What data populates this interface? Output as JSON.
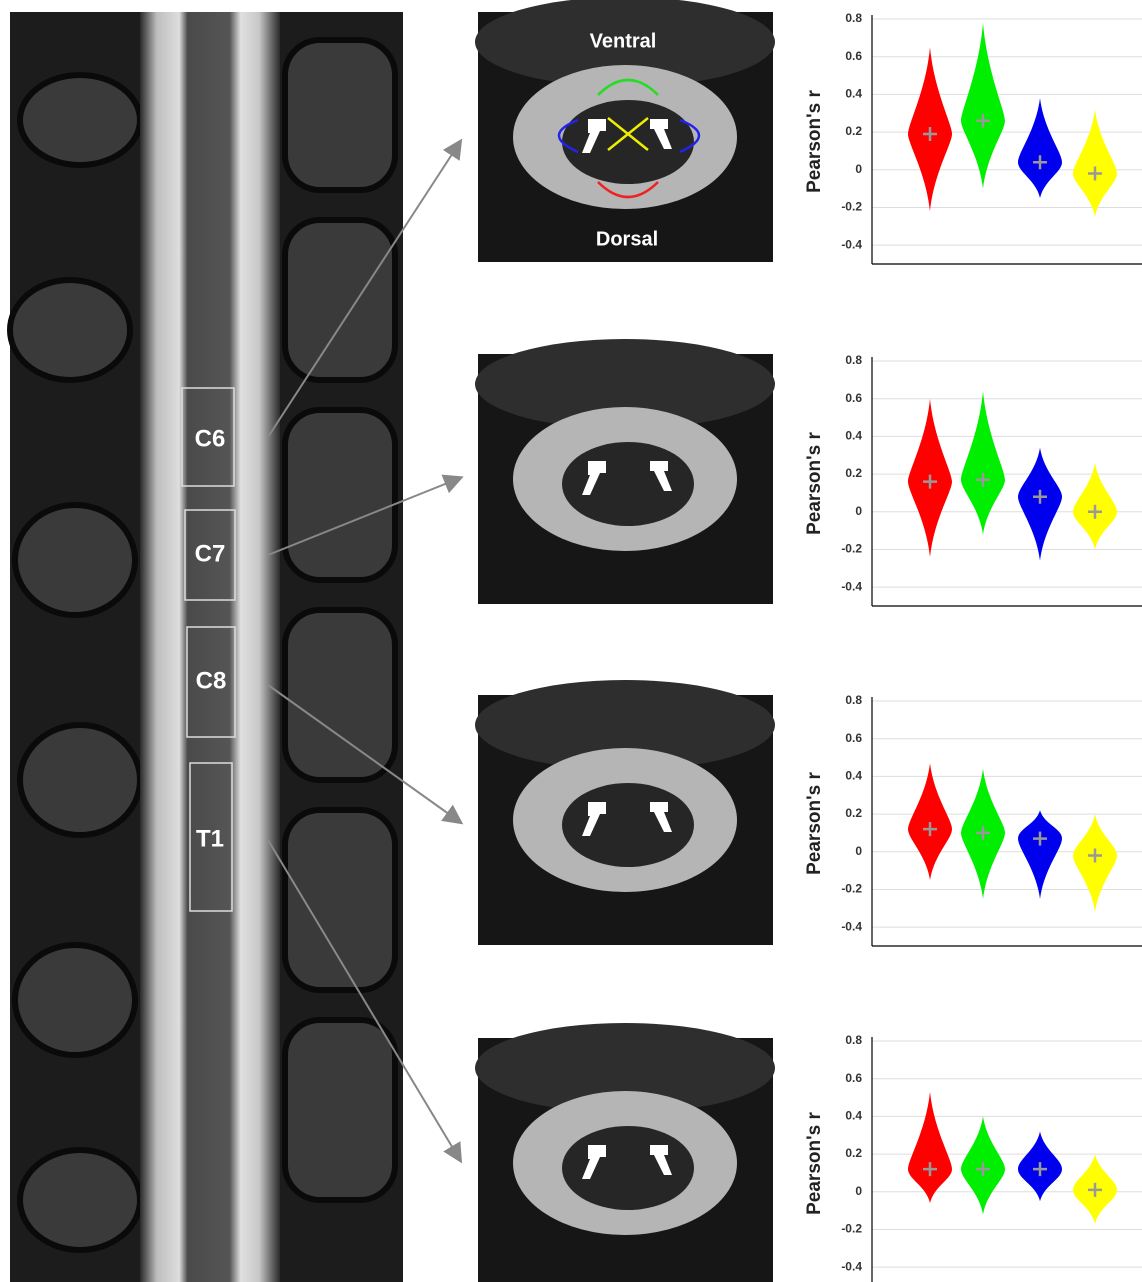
{
  "levels": [
    "C6",
    "C7",
    "C8",
    "T1"
  ],
  "axial_labels": {
    "ventral": "Ventral",
    "dorsal": "Dorsal"
  },
  "chart_data": [
    {
      "type": "violin",
      "ylabel": "Pearson's r",
      "ylim": [
        -0.5,
        0.8
      ],
      "yticks": [
        -0.4,
        -0.2,
        0,
        0.2,
        0.4,
        0.6,
        0.8
      ],
      "grid": true,
      "series": [
        {
          "color": "#ff0000",
          "min": -0.22,
          "mean": 0.19,
          "max": 0.65
        },
        {
          "color": "#00ee00",
          "min": -0.1,
          "mean": 0.26,
          "max": 0.78
        },
        {
          "color": "#0000ee",
          "min": -0.15,
          "mean": 0.04,
          "max": 0.38
        },
        {
          "color": "#ffff00",
          "min": -0.25,
          "mean": -0.02,
          "max": 0.32
        }
      ]
    },
    {
      "type": "violin",
      "ylabel": "Pearson's r",
      "ylim": [
        -0.5,
        0.8
      ],
      "yticks": [
        -0.4,
        -0.2,
        0,
        0.2,
        0.4,
        0.6,
        0.8
      ],
      "grid": true,
      "series": [
        {
          "color": "#ff0000",
          "min": -0.24,
          "mean": 0.16,
          "max": 0.6
        },
        {
          "color": "#00ee00",
          "min": -0.12,
          "mean": 0.17,
          "max": 0.64
        },
        {
          "color": "#0000ee",
          "min": -0.26,
          "mean": 0.08,
          "max": 0.34
        },
        {
          "color": "#ffff00",
          "min": -0.2,
          "mean": 0.0,
          "max": 0.26
        }
      ]
    },
    {
      "type": "violin",
      "ylabel": "Pearson's r",
      "ylim": [
        -0.5,
        0.8
      ],
      "yticks": [
        -0.4,
        -0.2,
        0,
        0.2,
        0.4,
        0.6,
        0.8
      ],
      "grid": true,
      "series": [
        {
          "color": "#ff0000",
          "min": -0.15,
          "mean": 0.12,
          "max": 0.47
        },
        {
          "color": "#00ee00",
          "min": -0.25,
          "mean": 0.1,
          "max": 0.44
        },
        {
          "color": "#0000ee",
          "min": -0.25,
          "mean": 0.07,
          "max": 0.22
        },
        {
          "color": "#ffff00",
          "min": -0.32,
          "mean": -0.02,
          "max": 0.2
        }
      ]
    },
    {
      "type": "violin",
      "ylabel": "Pearson's r",
      "ylim": [
        -0.5,
        0.8
      ],
      "yticks": [
        -0.4,
        -0.2,
        0,
        0.2,
        0.4,
        0.6,
        0.8
      ],
      "grid": true,
      "series": [
        {
          "color": "#ff0000",
          "min": -0.06,
          "mean": 0.12,
          "max": 0.53
        },
        {
          "color": "#00ee00",
          "min": -0.12,
          "mean": 0.12,
          "max": 0.4
        },
        {
          "color": "#0000ee",
          "min": -0.05,
          "mean": 0.12,
          "max": 0.32
        },
        {
          "color": "#ffff00",
          "min": -0.17,
          "mean": 0.01,
          "max": 0.2
        }
      ]
    }
  ]
}
